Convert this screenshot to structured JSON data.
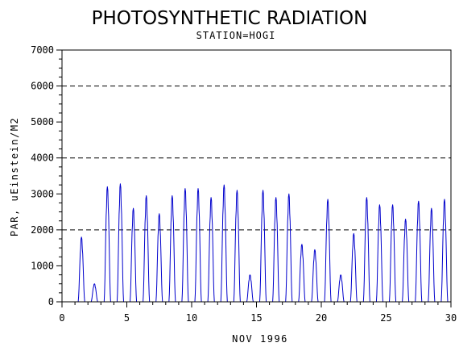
{
  "chart_data": {
    "type": "line",
    "title": "PHOTOSYNTHETIC RADIATION",
    "subtitle": "STATION=HOGI",
    "xlabel": "NOV 1996",
    "ylabel": "PAR, uEinstein/M2",
    "xlim": [
      0,
      30
    ],
    "ylim": [
      0,
      7000
    ],
    "xticks": [
      0,
      5,
      10,
      15,
      20,
      25,
      30
    ],
    "yticks": [
      0,
      1000,
      2000,
      3000,
      4000,
      5000,
      6000,
      7000
    ],
    "reference_lines": [
      2000,
      4000,
      6000
    ],
    "series_color": "#0000cc",
    "series": [
      {
        "peaks": [
          {
            "day": 1,
            "max": 1800
          },
          {
            "day": 2,
            "max": 500
          },
          {
            "day": 3,
            "max": 3200
          },
          {
            "day": 4,
            "max": 3280
          },
          {
            "day": 5,
            "max": 2600
          },
          {
            "day": 6,
            "max": 2950
          },
          {
            "day": 7,
            "max": 2450
          },
          {
            "day": 8,
            "max": 2950
          },
          {
            "day": 9,
            "max": 3150
          },
          {
            "day": 10,
            "max": 3150
          },
          {
            "day": 11,
            "max": 2900
          },
          {
            "day": 12,
            "max": 3250
          },
          {
            "day": 13,
            "max": 3100
          },
          {
            "day": 14,
            "max": 750
          },
          {
            "day": 15,
            "max": 3100
          },
          {
            "day": 16,
            "max": 2900
          },
          {
            "day": 17,
            "max": 3000
          },
          {
            "day": 18,
            "max": 1600
          },
          {
            "day": 19,
            "max": 1450
          },
          {
            "day": 20,
            "max": 2850
          },
          {
            "day": 21,
            "max": 750
          },
          {
            "day": 22,
            "max": 1900
          },
          {
            "day": 23,
            "max": 2900
          },
          {
            "day": 24,
            "max": 2700
          },
          {
            "day": 25,
            "max": 2700
          },
          {
            "day": 26,
            "max": 2300
          },
          {
            "day": 27,
            "max": 2800
          },
          {
            "day": 28,
            "max": 2600
          },
          {
            "day": 29,
            "max": 2850
          }
        ]
      }
    ]
  }
}
